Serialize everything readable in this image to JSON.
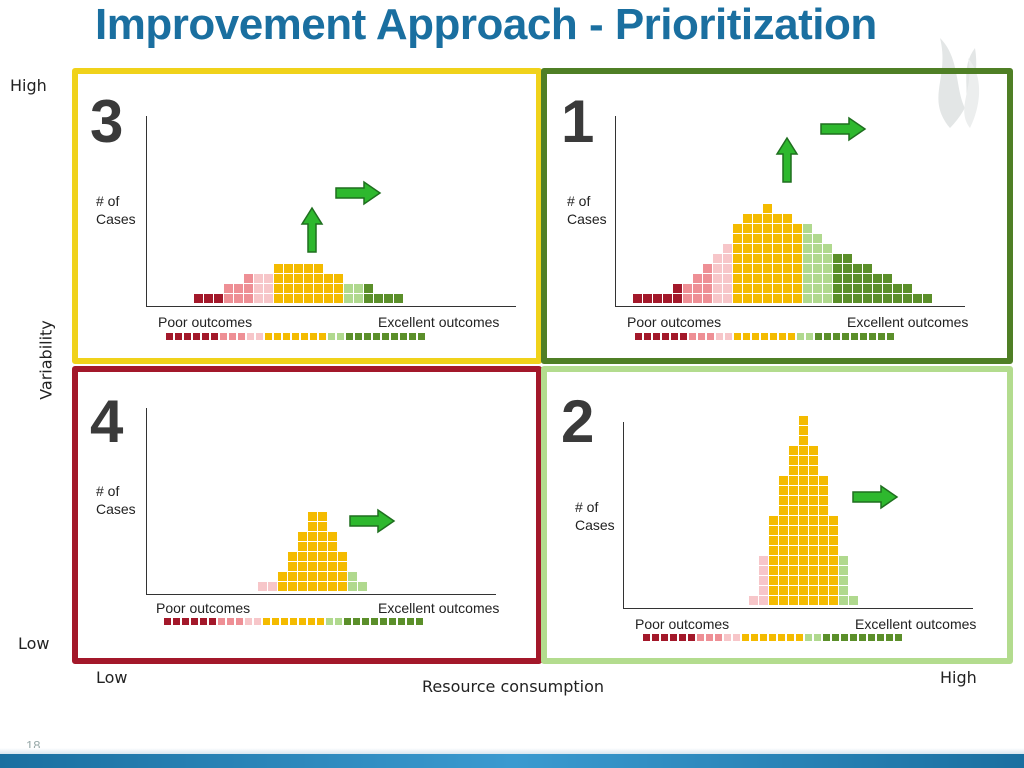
{
  "title": "Improvement Approach - Prioritization",
  "axes": {
    "y_label": "Variability",
    "y_high": "High",
    "y_low": "Low",
    "x_label": "Resource consumption",
    "x_low": "Low",
    "x_high": "High"
  },
  "page_number": "18",
  "colors": {
    "dark_red": "#a3182a",
    "pink": "#ee8f95",
    "light_pink": "#f7c6c9",
    "yellow": "#f4bb00",
    "light_green": "#b0d98e",
    "dark_green": "#5b8f2a",
    "border_yellow": "#f0d21a",
    "border_dark_green": "#4f7f25",
    "border_red": "#a3182a",
    "border_light_green": "#b3dc8e"
  },
  "quadrants": [
    {
      "id": "q3",
      "number": "3",
      "y_axis_label": "# of\nCases",
      "poor_label": "Poor outcomes",
      "excellent_label": "Excellent outcomes",
      "border_color": "#f0d21a",
      "column_colors": [
        "dark_red",
        "dark_red",
        "dark_red",
        "pink",
        "pink",
        "pink",
        "light_pink",
        "light_pink",
        "yellow",
        "yellow",
        "yellow",
        "yellow",
        "yellow",
        "yellow",
        "yellow",
        "light_green",
        "light_green",
        "dark_green",
        "dark_green",
        "dark_green",
        "dark_green"
      ],
      "column_heights": [
        1,
        1,
        1,
        2,
        2,
        3,
        3,
        3,
        4,
        4,
        4,
        4,
        4,
        3,
        3,
        2,
        2,
        2,
        1,
        1,
        1
      ],
      "arrows": [
        "up",
        "right"
      ]
    },
    {
      "id": "q1",
      "number": "1",
      "y_axis_label": "# of\nCases",
      "poor_label": "Poor outcomes",
      "excellent_label": "Excellent outcomes",
      "border_color": "#4f7f25",
      "column_colors": [
        "dark_red",
        "dark_red",
        "dark_red",
        "dark_red",
        "dark_red",
        "pink",
        "pink",
        "pink",
        "light_pink",
        "light_pink",
        "yellow",
        "yellow",
        "yellow",
        "yellow",
        "yellow",
        "yellow",
        "yellow",
        "light_green",
        "light_green",
        "light_green",
        "dark_green",
        "dark_green",
        "dark_green",
        "dark_green",
        "dark_green",
        "dark_green",
        "dark_green",
        "dark_green",
        "dark_green",
        "dark_green"
      ],
      "column_heights": [
        1,
        1,
        1,
        1,
        2,
        2,
        3,
        4,
        5,
        6,
        8,
        9,
        9,
        10,
        9,
        9,
        8,
        8,
        7,
        6,
        5,
        5,
        4,
        4,
        3,
        3,
        2,
        2,
        1,
        1
      ],
      "arrows": [
        "up",
        "right"
      ]
    },
    {
      "id": "q4",
      "number": "4",
      "y_axis_label": "# of\nCases",
      "poor_label": "Poor outcomes",
      "excellent_label": "Excellent outcomes",
      "border_color": "#a3182a",
      "column_colors": [
        "light_pink",
        "light_pink",
        "yellow",
        "yellow",
        "yellow",
        "yellow",
        "yellow",
        "yellow",
        "yellow",
        "light_green",
        "light_green"
      ],
      "column_heights": [
        1,
        1,
        2,
        4,
        6,
        8,
        8,
        6,
        4,
        2,
        1
      ],
      "arrows": [
        "right"
      ]
    },
    {
      "id": "q2",
      "number": "2",
      "y_axis_label": "# of\nCases",
      "poor_label": "Poor outcomes",
      "excellent_label": "Excellent outcomes",
      "border_color": "#b3dc8e",
      "column_colors": [
        "light_pink",
        "light_pink",
        "yellow",
        "yellow",
        "yellow",
        "yellow",
        "yellow",
        "yellow",
        "yellow",
        "light_green",
        "light_green"
      ],
      "column_heights": [
        1,
        5,
        9,
        13,
        16,
        19,
        16,
        13,
        9,
        5,
        1
      ],
      "arrows": [
        "right"
      ]
    }
  ],
  "legend_colors": [
    "dark_red",
    "dark_red",
    "dark_red",
    "dark_red",
    "dark_red",
    "dark_red",
    "pink",
    "pink",
    "pink",
    "light_pink",
    "light_pink",
    "yellow",
    "yellow",
    "yellow",
    "yellow",
    "yellow",
    "yellow",
    "yellow",
    "light_green",
    "light_green",
    "dark_green",
    "dark_green",
    "dark_green",
    "dark_green",
    "dark_green",
    "dark_green",
    "dark_green",
    "dark_green",
    "dark_green"
  ]
}
